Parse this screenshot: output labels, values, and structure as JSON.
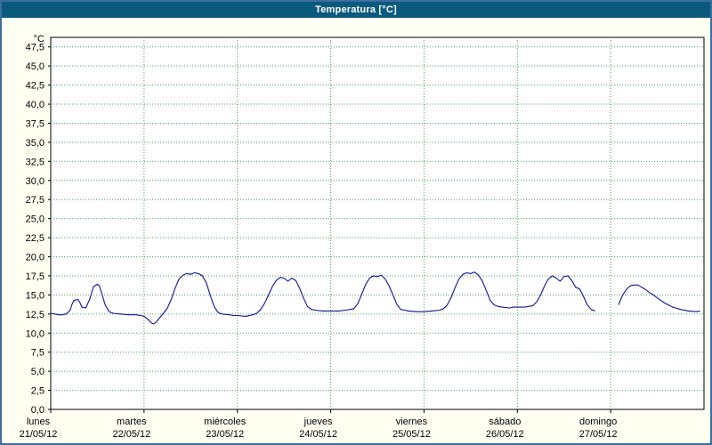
{
  "window": {
    "title": "Temperatura [°C]"
  },
  "colors": {
    "window_border": "#3c6e9f",
    "titlebar_bg": "#0a5a7d",
    "titlebar_text": "#ffffff",
    "background": "#fffff2",
    "plot_bg": "#ffffff",
    "plot_border": "#000000",
    "grid": "#45a45c",
    "line": "#10109b",
    "text": "#000000"
  },
  "chart_data": {
    "type": "line",
    "title": "Temperatura [°C]",
    "grid": "dotted",
    "legend": "none",
    "y_axis": {
      "unit": "°C",
      "min": 0,
      "max": 48.75,
      "step": 2.5,
      "decimal_separator": ",",
      "tick_labels": [
        "47,5",
        "45,0",
        "42,5",
        "40,0",
        "37,5",
        "35,0",
        "32,5",
        "30,0",
        "27,5",
        "25,0",
        "22,5",
        "20,0",
        "17,5",
        "15,0",
        "12,5",
        "10,0",
        "7,5",
        "5,0",
        "2,5",
        "0,0"
      ]
    },
    "x_axis": {
      "total_hours": 168,
      "days": [
        {
          "name": "lunes",
          "date": "21/05/12"
        },
        {
          "name": "martes",
          "date": "22/05/12"
        },
        {
          "name": "miércoles",
          "date": "23/05/12"
        },
        {
          "name": "jueves",
          "date": "24/05/12"
        },
        {
          "name": "viernes",
          "date": "25/05/12"
        },
        {
          "name": "sábado",
          "date": "26/05/12"
        },
        {
          "name": "domingo",
          "date": "27/05/12"
        }
      ]
    },
    "series": [
      {
        "name": "Temperatura",
        "color": "#10109b",
        "points": [
          [
            0,
            12.6
          ],
          [
            1,
            12.5
          ],
          [
            2,
            12.4
          ],
          [
            3,
            12.4
          ],
          [
            4,
            12.5
          ],
          [
            5,
            13.0
          ],
          [
            5.5,
            13.8
          ],
          [
            6,
            14.3
          ],
          [
            7,
            14.4
          ],
          [
            7.5,
            14.0
          ],
          [
            8,
            13.4
          ],
          [
            9,
            13.3
          ],
          [
            10,
            14.4
          ],
          [
            11,
            16.1
          ],
          [
            12,
            16.4
          ],
          [
            12.5,
            16.2
          ],
          [
            13,
            15.4
          ],
          [
            14,
            13.7
          ],
          [
            15,
            12.8
          ],
          [
            16,
            12.6
          ],
          [
            18,
            12.5
          ],
          [
            20,
            12.4
          ],
          [
            22,
            12.4
          ],
          [
            23,
            12.3
          ],
          [
            24,
            12.2
          ],
          [
            25,
            11.8
          ],
          [
            26,
            11.3
          ],
          [
            26.5,
            11.2
          ],
          [
            27,
            11.4
          ],
          [
            28,
            12.0
          ],
          [
            29,
            12.6
          ],
          [
            30,
            13.3
          ],
          [
            31,
            14.4
          ],
          [
            32,
            15.9
          ],
          [
            33,
            17.1
          ],
          [
            34,
            17.6
          ],
          [
            35,
            17.8
          ],
          [
            36,
            17.7
          ],
          [
            37,
            17.9
          ],
          [
            38,
            17.8
          ],
          [
            39,
            17.5
          ],
          [
            40,
            16.6
          ],
          [
            41,
            15.0
          ],
          [
            42,
            13.5
          ],
          [
            43,
            12.7
          ],
          [
            44,
            12.5
          ],
          [
            46,
            12.4
          ],
          [
            47,
            12.3
          ],
          [
            48,
            12.3
          ],
          [
            50,
            12.2
          ],
          [
            52,
            12.4
          ],
          [
            53,
            12.6
          ],
          [
            54,
            13.1
          ],
          [
            55,
            13.9
          ],
          [
            56,
            15.0
          ],
          [
            57,
            16.1
          ],
          [
            58,
            16.9
          ],
          [
            59,
            17.3
          ],
          [
            60,
            17.2
          ],
          [
            61,
            16.8
          ],
          [
            62,
            17.2
          ],
          [
            63,
            16.9
          ],
          [
            64,
            15.9
          ],
          [
            65,
            14.6
          ],
          [
            66,
            13.5
          ],
          [
            67,
            13.1
          ],
          [
            68,
            13.0
          ],
          [
            70,
            12.9
          ],
          [
            71,
            12.9
          ],
          [
            72,
            12.9
          ],
          [
            74,
            12.9
          ],
          [
            76,
            13.0
          ],
          [
            78,
            13.2
          ],
          [
            79,
            13.9
          ],
          [
            80,
            15.1
          ],
          [
            81,
            16.4
          ],
          [
            82,
            17.2
          ],
          [
            83,
            17.5
          ],
          [
            84,
            17.4
          ],
          [
            85,
            17.6
          ],
          [
            86,
            17.1
          ],
          [
            87,
            16.2
          ],
          [
            88,
            15.0
          ],
          [
            89,
            13.8
          ],
          [
            90,
            13.1
          ],
          [
            91,
            13.0
          ],
          [
            92,
            12.9
          ],
          [
            94,
            12.8
          ],
          [
            95,
            12.8
          ],
          [
            96,
            12.8
          ],
          [
            98,
            12.9
          ],
          [
            100,
            13.0
          ],
          [
            101,
            13.2
          ],
          [
            102,
            13.7
          ],
          [
            103,
            14.7
          ],
          [
            104,
            16.0
          ],
          [
            105,
            17.1
          ],
          [
            106,
            17.7
          ],
          [
            107,
            17.9
          ],
          [
            108,
            17.8
          ],
          [
            109,
            18.0
          ],
          [
            110,
            17.6
          ],
          [
            111,
            16.8
          ],
          [
            112,
            15.6
          ],
          [
            113,
            14.3
          ],
          [
            114,
            13.7
          ],
          [
            115,
            13.5
          ],
          [
            116,
            13.4
          ],
          [
            118,
            13.3
          ],
          [
            119,
            13.4
          ],
          [
            120,
            13.4
          ],
          [
            122,
            13.4
          ],
          [
            124,
            13.6
          ],
          [
            125,
            14.1
          ],
          [
            126,
            15.0
          ],
          [
            127,
            16.2
          ],
          [
            128,
            17.1
          ],
          [
            129,
            17.5
          ],
          [
            130,
            17.2
          ],
          [
            131,
            16.8
          ],
          [
            132,
            17.4
          ],
          [
            133,
            17.5
          ],
          [
            134,
            16.9
          ],
          [
            135,
            16.0
          ],
          [
            136,
            15.8
          ],
          [
            137,
            14.8
          ],
          [
            138,
            13.7
          ],
          [
            139,
            13.1
          ],
          [
            140,
            12.9
          ],
          null,
          [
            146,
            13.7
          ],
          [
            147,
            14.9
          ],
          [
            148,
            15.7
          ],
          [
            149,
            16.2
          ],
          [
            150,
            16.3
          ],
          [
            151,
            16.3
          ],
          [
            152,
            16.0
          ],
          [
            153,
            15.7
          ],
          [
            154,
            15.3
          ],
          [
            155,
            15.0
          ],
          [
            156,
            14.6
          ],
          [
            158,
            13.9
          ],
          [
            160,
            13.4
          ],
          [
            162,
            13.1
          ],
          [
            164,
            12.9
          ],
          [
            166,
            12.8
          ],
          [
            167,
            12.9
          ]
        ]
      }
    ]
  }
}
